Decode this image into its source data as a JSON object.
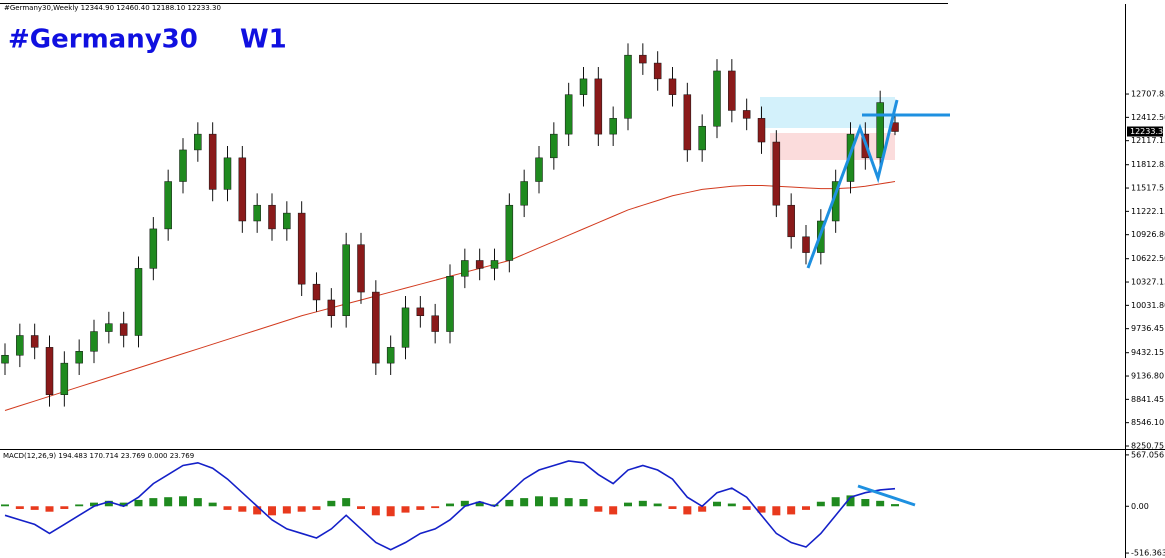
{
  "chart_data": [
    {
      "type": "candlestick",
      "header": "#Germany30,Weekly  12344.90 12460.40 12188.10 12233.30",
      "title": "#Germany30",
      "timeframe": "W1",
      "current_price_label": "12233.30",
      "up_color": "#1f8a1f",
      "down_color": "#8a1a1a",
      "open": [
        9300,
        9400,
        9650,
        9500,
        8900,
        9300,
        9450,
        9700,
        9800,
        9650,
        10500,
        11000,
        11600,
        12000,
        12200,
        11500,
        11900,
        11100,
        11300,
        11000,
        11200,
        10300,
        10100,
        9900,
        10800,
        10200,
        9300,
        9500,
        10000,
        9900,
        9700,
        10400,
        10600,
        10500,
        10600,
        11300,
        11600,
        11900,
        12200,
        12700,
        12900,
        12200,
        12400,
        13200,
        13100,
        12900,
        12700,
        12000,
        12300,
        13000,
        12500,
        12400,
        12100,
        11300,
        10900,
        10700,
        11100,
        11600,
        12200,
        11900,
        12344.9
      ],
      "high": [
        9550,
        9800,
        9800,
        9650,
        9450,
        9600,
        9850,
        9950,
        9950,
        10650,
        11150,
        11750,
        12150,
        12350,
        12350,
        12050,
        12050,
        11450,
        11450,
        11350,
        11350,
        10450,
        10250,
        10950,
        10950,
        10350,
        9650,
        10150,
        10150,
        10050,
        10550,
        10750,
        10750,
        10750,
        11450,
        11750,
        12050,
        12350,
        12850,
        13050,
        13050,
        12550,
        13350,
        13350,
        13250,
        13050,
        12850,
        12450,
        13150,
        13150,
        12650,
        12550,
        12250,
        11450,
        11050,
        11250,
        11750,
        12350,
        12350,
        12750,
        12460.4
      ],
      "low": [
        9150,
        9250,
        9350,
        8750,
        8750,
        9150,
        9300,
        9550,
        9500,
        9500,
        10350,
        10850,
        11450,
        11850,
        11350,
        11350,
        10950,
        10950,
        10850,
        10850,
        10150,
        9950,
        9750,
        9750,
        10050,
        9150,
        9150,
        9350,
        9750,
        9550,
        9550,
        10250,
        10350,
        10350,
        10450,
        11150,
        11450,
        11750,
        12050,
        12550,
        12050,
        12050,
        12250,
        12950,
        12750,
        12550,
        11850,
        11850,
        12150,
        12350,
        12250,
        11950,
        11150,
        10750,
        10550,
        10550,
        10950,
        11450,
        11750,
        11750,
        12188.1
      ],
      "close": [
        9400,
        9650,
        9500,
        8900,
        9300,
        9450,
        9700,
        9800,
        9650,
        10500,
        11000,
        11600,
        12000,
        12200,
        11500,
        11900,
        11100,
        11300,
        11000,
        11200,
        10300,
        10100,
        9900,
        10800,
        10200,
        9300,
        9500,
        10000,
        9900,
        9700,
        10400,
        10600,
        10500,
        10600,
        11300,
        11600,
        11900,
        12200,
        12700,
        12900,
        12200,
        12400,
        13200,
        13100,
        12900,
        12700,
        12000,
        12300,
        13000,
        12500,
        12400,
        12100,
        11300,
        10900,
        10700,
        11100,
        11600,
        12200,
        11900,
        12600,
        12233.3
      ],
      "ma": {
        "color": "#d23a1e",
        "values": [
          8700,
          8760,
          8820,
          8880,
          8940,
          9000,
          9060,
          9120,
          9180,
          9240,
          9300,
          9360,
          9420,
          9480,
          9540,
          9600,
          9660,
          9720,
          9780,
          9840,
          9900,
          9950,
          10000,
          10050,
          10100,
          10150,
          10200,
          10250,
          10300,
          10350,
          10400,
          10450,
          10500,
          10550,
          10600,
          10680,
          10760,
          10840,
          10920,
          11000,
          11080,
          11160,
          11240,
          11300,
          11360,
          11420,
          11460,
          11500,
          11520,
          11540,
          11550,
          11550,
          11540,
          11530,
          11520,
          11510,
          11510,
          11520,
          11540,
          11570,
          11600
        ]
      },
      "ylim": [
        8238,
        13848
      ],
      "yticks": [
        12707.85,
        {
          "value": 12412.5,
          "label": "12412.50"
        },
        12117.15,
        11812.85,
        11517.5,
        11222.15,
        {
          "value": 10926.8,
          "label": "10926.80"
        },
        {
          "value": 10622.5,
          "label": "10622.50"
        },
        10327.15,
        {
          "value": 10031.8,
          "label": "10031.80"
        },
        9736.45,
        9432.15,
        {
          "value": 9136.8,
          "label": "9136.80"
        },
        8841.45,
        {
          "value": 8546.1,
          "label": "8546.10"
        },
        8250.75
      ]
    },
    {
      "type": "macd",
      "label": "MACD(12,26,9) 194.483 170.714 23.769 0.000 23.769",
      "up_color": "#1f8a1f",
      "down_color": "#e8391d",
      "line_color": "#1420c8",
      "histogram": [
        20,
        -30,
        -40,
        -60,
        -30,
        20,
        40,
        60,
        40,
        70,
        90,
        100,
        110,
        90,
        40,
        -40,
        -60,
        -90,
        -100,
        -80,
        -60,
        -40,
        60,
        90,
        -30,
        -100,
        -110,
        -70,
        -40,
        -20,
        30,
        60,
        50,
        20,
        70,
        90,
        110,
        100,
        90,
        80,
        -60,
        -90,
        40,
        60,
        30,
        -30,
        -90,
        -60,
        50,
        30,
        -40,
        -70,
        -100,
        -90,
        -40,
        50,
        100,
        120,
        80,
        60,
        23.769
      ],
      "macd": [
        -100,
        -150,
        -200,
        -300,
        -200,
        -100,
        0,
        50,
        0,
        100,
        250,
        350,
        450,
        480,
        420,
        300,
        150,
        0,
        -150,
        -250,
        -300,
        -350,
        -250,
        -100,
        -250,
        -400,
        -480,
        -400,
        -300,
        -250,
        -150,
        0,
        50,
        0,
        150,
        300,
        400,
        450,
        500,
        480,
        350,
        250,
        400,
        450,
        400,
        300,
        100,
        0,
        150,
        200,
        100,
        -100,
        -300,
        -400,
        -450,
        -300,
        -100,
        100,
        150,
        180,
        194.483
      ],
      "ylim": [
        -560,
        610
      ],
      "yticks": [
        567.056,
        {
          "value": 0,
          "label": "0.00"
        },
        -516.363
      ]
    }
  ]
}
